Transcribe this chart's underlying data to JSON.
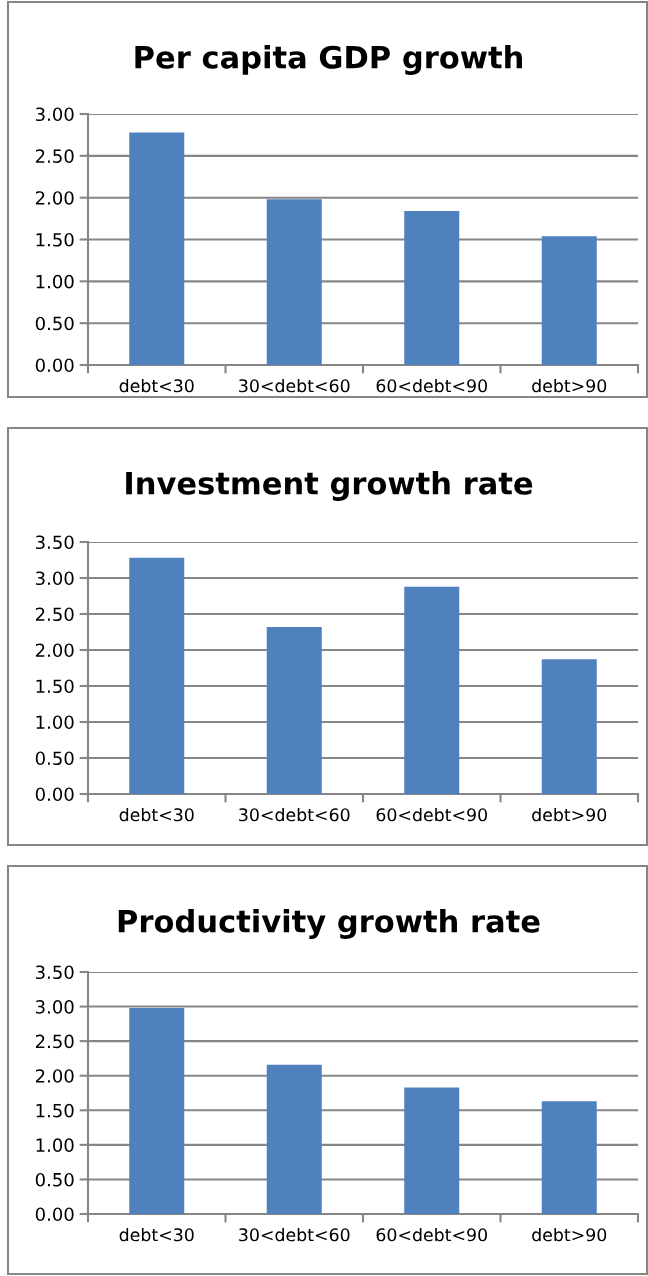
{
  "chart_data": [
    {
      "type": "bar",
      "title": "Per capita GDP growth",
      "categories": [
        "debt<30",
        "30<debt<60",
        "60<debt<90",
        "debt>90"
      ],
      "values": [
        2.78,
        1.98,
        1.84,
        1.54
      ],
      "color": "#4f81bd",
      "ylim": [
        0,
        3
      ],
      "yticks": [
        {
          "value": 0,
          "label": "0.00"
        },
        {
          "value": 0.5,
          "label": "0.50"
        },
        {
          "value": 1,
          "label": "1.00"
        },
        {
          "value": 1.5,
          "label": "1.50"
        },
        {
          "value": 2,
          "label": "2.00"
        },
        {
          "value": 2.5,
          "label": "2.50"
        },
        {
          "value": 3,
          "label": "3.00"
        }
      ],
      "grid": "y",
      "legend": false
    },
    {
      "type": "bar",
      "title": "Investment growth rate",
      "categories": [
        "debt<30",
        "30<debt<60",
        "60<debt<90",
        "debt>90"
      ],
      "values": [
        3.28,
        2.32,
        2.88,
        1.87
      ],
      "color": "#4f81bd",
      "ylim": [
        0,
        3.5
      ],
      "yticks": [
        {
          "value": 0,
          "label": "0.00"
        },
        {
          "value": 0.5,
          "label": "0.50"
        },
        {
          "value": 1,
          "label": "1.00"
        },
        {
          "value": 1.5,
          "label": "1.50"
        },
        {
          "value": 2,
          "label": "2.00"
        },
        {
          "value": 2.5,
          "label": "2.50"
        },
        {
          "value": 3,
          "label": "3.00"
        },
        {
          "value": 3.5,
          "label": "3.50"
        }
      ],
      "grid": "y",
      "legend": false
    },
    {
      "type": "bar",
      "title": "Productivity growth rate",
      "categories": [
        "debt<30",
        "30<debt<60",
        "60<debt<90",
        "debt>90"
      ],
      "values": [
        2.98,
        2.16,
        1.83,
        1.63
      ],
      "color": "#4f81bd",
      "ylim": [
        0,
        3.5
      ],
      "yticks": [
        {
          "value": 0,
          "label": "0.00"
        },
        {
          "value": 0.5,
          "label": "0.50"
        },
        {
          "value": 1,
          "label": "1.00"
        },
        {
          "value": 1.5,
          "label": "1.50"
        },
        {
          "value": 2,
          "label": "2.00"
        },
        {
          "value": 2.5,
          "label": "2.50"
        },
        {
          "value": 3,
          "label": "3.00"
        },
        {
          "value": 3.5,
          "label": "3.50"
        }
      ],
      "grid": "y",
      "legend": false
    }
  ]
}
